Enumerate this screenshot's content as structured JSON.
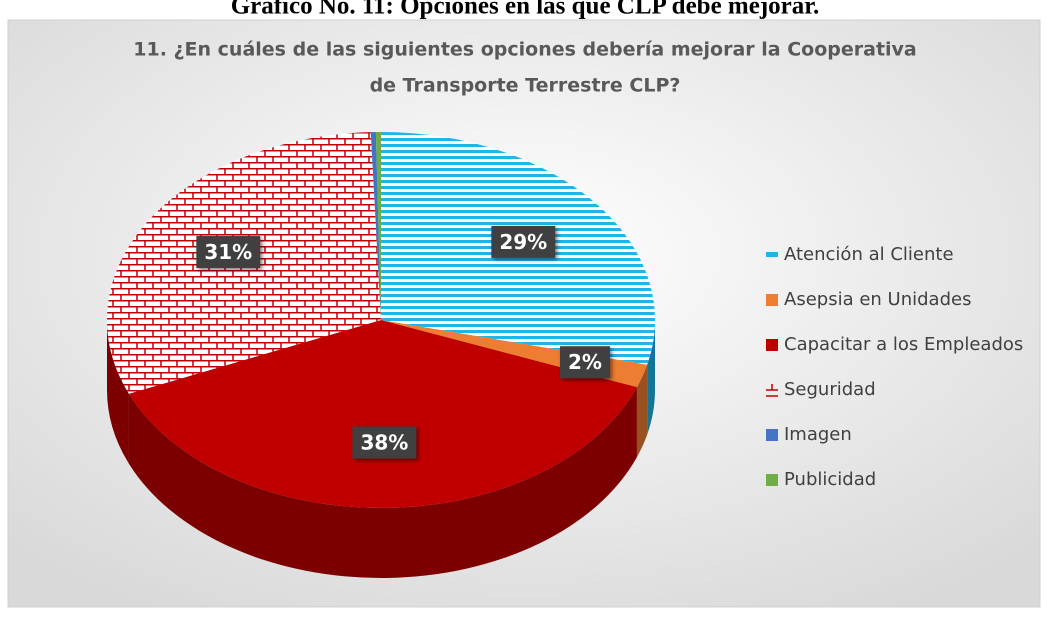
{
  "caption": "Gráfico No. 11: Opciones en las que CLP debe mejorar.",
  "chart_data": {
    "type": "pie3d",
    "title": [
      "11. ¿En cuáles de las siguientes opciones debería mejorar la Cooperativa",
      "de Transporte Terrestre CLP?"
    ],
    "categories": [
      "Atención al Cliente",
      "Asepsia en Unidades",
      "Capacitar a los Empleados",
      "Seguridad",
      "Imagen",
      "Publicidad"
    ],
    "values": [
      29,
      2,
      38,
      31,
      0.3,
      0.3
    ],
    "value_labels": [
      "29%",
      "2%",
      "38%",
      "31%",
      null,
      null
    ],
    "colors": [
      "#1fb5e6",
      "#ed7d31",
      "#c00000",
      "#c00000",
      "#4472c4",
      "#70ad47"
    ],
    "patterns": [
      "horizontal",
      "solid",
      "solid",
      "brick",
      "solid",
      "solid"
    ],
    "legend": "right"
  }
}
